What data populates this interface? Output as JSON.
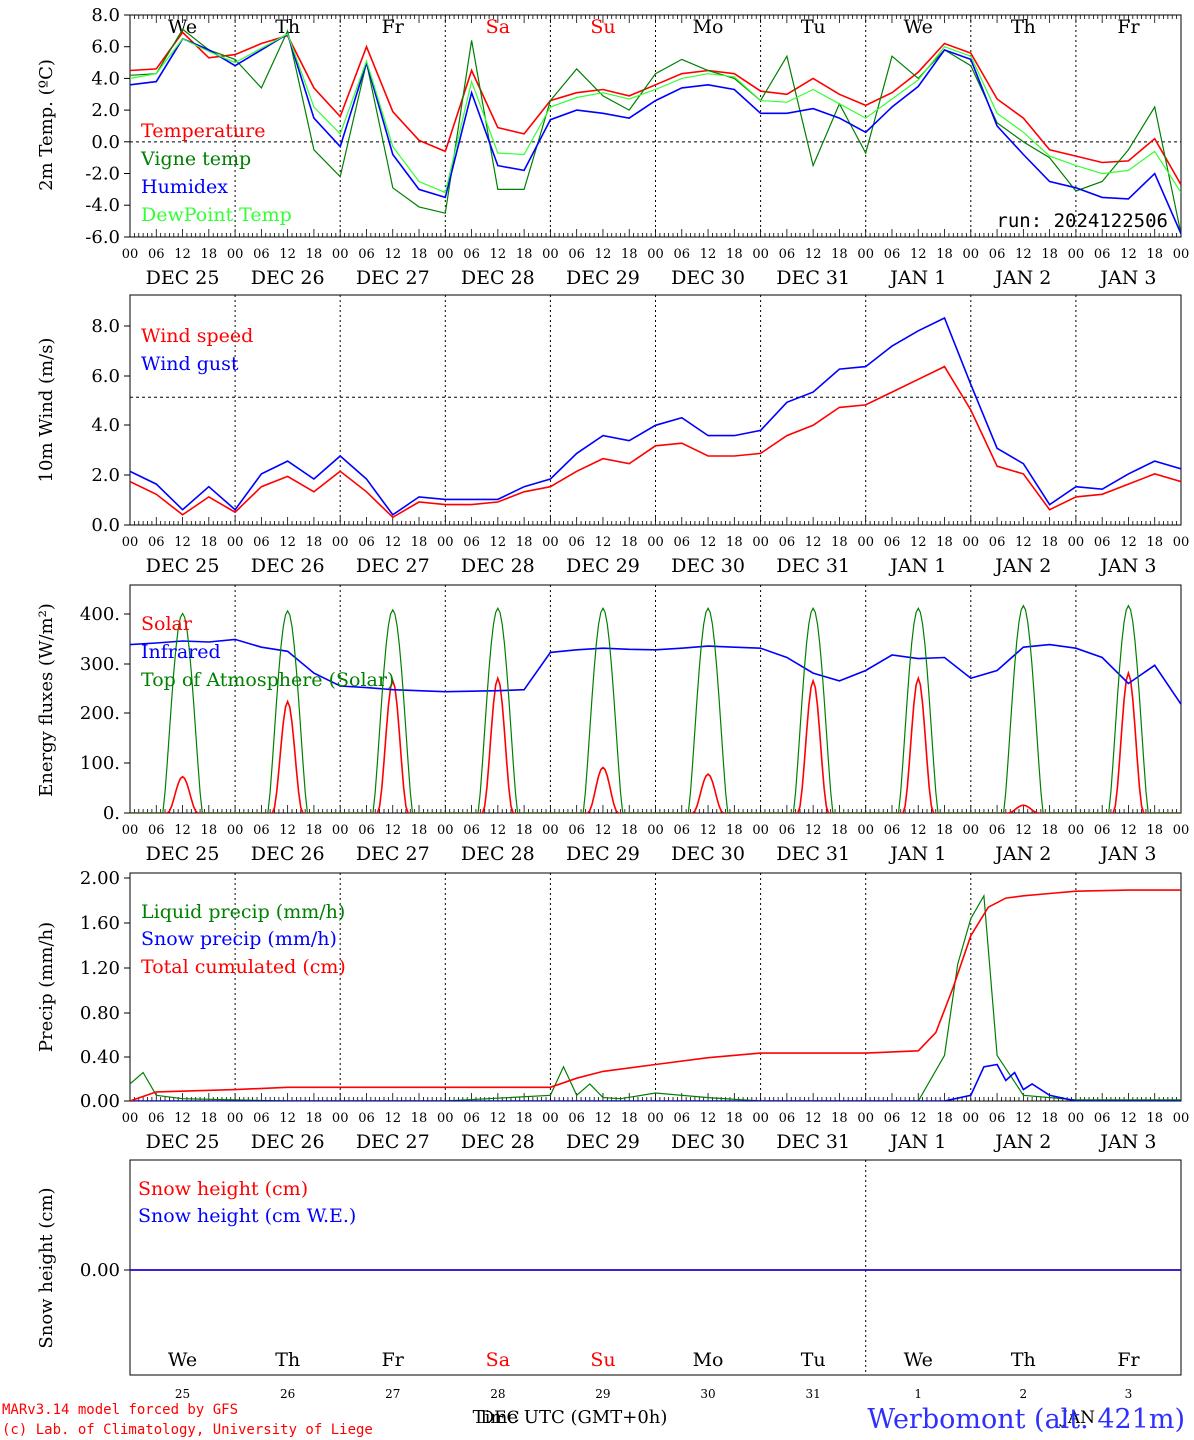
{
  "meta": {
    "run_label": "run: 2024122506",
    "model_line1": "MARv3.14 model forced by GFS",
    "model_line2": "(c) Lab. of Climatology, University of Liege",
    "x_axis_title": "Time UTC (GMT+0h)",
    "overlap_label": "DEC",
    "overlap_label2": "JAN",
    "station": "Werbomont (alt. 421m)"
  },
  "colors": {
    "red": "#ff0000",
    "green": "#008000",
    "blue": "#0000ff",
    "lightgreen": "#33ff33",
    "black": "#000000"
  },
  "weekdays": [
    {
      "label": "We",
      "weekend": false
    },
    {
      "label": "Th",
      "weekend": false
    },
    {
      "label": "Fr",
      "weekend": false
    },
    {
      "label": "Sa",
      "weekend": true
    },
    {
      "label": "Su",
      "weekend": true
    },
    {
      "label": "Mo",
      "weekend": false
    },
    {
      "label": "Tu",
      "weekend": false
    },
    {
      "label": "We",
      "weekend": false
    },
    {
      "label": "Th",
      "weekend": false
    },
    {
      "label": "Fr",
      "weekend": false
    }
  ],
  "date_labels": [
    "DEC 25",
    "DEC 26",
    "DEC 27",
    "DEC 28",
    "DEC 29",
    "DEC 30",
    "DEC 31",
    "JAN  1",
    "JAN  2",
    "JAN  3"
  ],
  "day_numbers": [
    "25",
    "26",
    "27",
    "28",
    "29",
    "30",
    "31",
    "1",
    "2",
    "3"
  ],
  "hour_ticks": [
    "00",
    "06",
    "12",
    "18"
  ],
  "chart_data": [
    {
      "type": "line",
      "ylabel": "2m Temp. (ºC)",
      "ylim": [
        -6,
        8
      ],
      "yticks": [
        "8.0",
        "6.0",
        "4.0",
        "2.0",
        "0.0",
        "-2.0",
        "-4.0",
        "-6.0"
      ],
      "ref_line": 0,
      "x_unit": "hours since DEC 25 00 UTC",
      "series": [
        {
          "name": "Temperature",
          "color": "red",
          "x": [
            0,
            6,
            12,
            18,
            24,
            30,
            36,
            42,
            48,
            54,
            60,
            66,
            72,
            78,
            84,
            90,
            96,
            102,
            108,
            114,
            120,
            126,
            132,
            138,
            144,
            150,
            156,
            162,
            168,
            174,
            180,
            186,
            192,
            198,
            204,
            210,
            216,
            222,
            228,
            234,
            240
          ],
          "y": [
            4.5,
            4.6,
            6.9,
            5.3,
            5.5,
            6.2,
            6.7,
            3.4,
            1.6,
            6.0,
            1.9,
            0.1,
            -0.6,
            4.5,
            0.9,
            0.5,
            2.6,
            3.1,
            3.3,
            2.9,
            3.6,
            4.3,
            4.5,
            4.3,
            3.2,
            3.0,
            4.0,
            3.0,
            2.3,
            3.1,
            4.4,
            6.2,
            5.6,
            2.7,
            1.5,
            -0.5,
            -0.9,
            -1.3,
            -1.2,
            0.2,
            -2.7
          ]
        },
        {
          "name": "Vigne temp",
          "color": "green",
          "x": [
            0,
            6,
            12,
            18,
            24,
            30,
            36,
            42,
            48,
            54,
            60,
            66,
            72,
            78,
            84,
            90,
            96,
            102,
            108,
            114,
            120,
            126,
            132,
            138,
            144,
            150,
            156,
            162,
            168,
            174,
            180,
            186,
            192,
            198,
            204,
            210,
            216,
            222,
            228,
            234,
            240
          ],
          "y": [
            4.2,
            4.3,
            7.1,
            5.8,
            5.2,
            3.4,
            7.0,
            -0.5,
            -2.2,
            5.0,
            -2.9,
            -4.1,
            -4.5,
            6.4,
            -3.0,
            -3.0,
            2.6,
            4.6,
            2.9,
            2.0,
            4.3,
            5.2,
            4.5,
            4.0,
            2.6,
            5.4,
            -1.5,
            2.4,
            -0.7,
            5.4,
            4.0,
            5.8,
            4.8,
            1.2,
            0.0,
            -1.0,
            -3.1,
            -2.5,
            -0.5,
            2.2,
            -5.8
          ]
        },
        {
          "name": "Humidex",
          "color": "blue",
          "x": [
            0,
            6,
            12,
            18,
            24,
            30,
            36,
            42,
            48,
            54,
            60,
            66,
            72,
            78,
            84,
            90,
            96,
            102,
            108,
            114,
            120,
            126,
            132,
            138,
            144,
            150,
            156,
            162,
            168,
            174,
            180,
            186,
            192,
            198,
            204,
            210,
            216,
            222,
            228,
            234,
            240
          ],
          "y": [
            3.6,
            3.8,
            6.5,
            5.8,
            4.8,
            5.8,
            6.8,
            1.5,
            -0.3,
            5.0,
            -0.8,
            -3.0,
            -3.5,
            3.1,
            -1.5,
            -1.8,
            1.4,
            2.0,
            1.8,
            1.5,
            2.6,
            3.4,
            3.6,
            3.3,
            1.8,
            1.8,
            2.1,
            1.5,
            0.6,
            2.2,
            3.5,
            5.8,
            5.2,
            1.0,
            -0.8,
            -2.5,
            -2.9,
            -3.5,
            -3.6,
            -2.0,
            -5.8
          ]
        },
        {
          "name": "DewPoint Temp",
          "color": "lightgreen",
          "x": [
            0,
            6,
            12,
            18,
            24,
            30,
            36,
            42,
            48,
            54,
            60,
            66,
            72,
            78,
            84,
            90,
            96,
            102,
            108,
            114,
            120,
            126,
            132,
            138,
            144,
            150,
            156,
            162,
            168,
            174,
            180,
            186,
            192,
            198,
            204,
            210,
            216,
            222,
            228,
            234,
            240
          ],
          "y": [
            4.0,
            4.3,
            6.5,
            5.7,
            5.0,
            5.9,
            6.8,
            2.2,
            0.5,
            5.1,
            -0.3,
            -2.5,
            -3.2,
            3.8,
            -0.7,
            -0.8,
            2.2,
            2.8,
            3.1,
            2.7,
            3.3,
            4.0,
            4.3,
            4.1,
            2.6,
            2.5,
            3.3,
            2.4,
            1.5,
            2.7,
            3.9,
            6.0,
            5.4,
            1.8,
            0.6,
            -0.9,
            -1.5,
            -2.0,
            -1.8,
            -0.6,
            -3.2
          ]
        }
      ]
    },
    {
      "type": "line",
      "ylabel": "10m Wind (m/s)",
      "ylim": [
        0,
        9
      ],
      "yticks": [
        "8.0",
        "6.0",
        "4.0",
        "2.0",
        "0.0"
      ],
      "ref_line": 5,
      "series": [
        {
          "name": "Wind speed",
          "color": "red",
          "x": [
            0,
            6,
            12,
            18,
            24,
            30,
            36,
            42,
            48,
            54,
            60,
            66,
            72,
            78,
            84,
            90,
            96,
            102,
            108,
            114,
            120,
            126,
            132,
            138,
            144,
            150,
            156,
            162,
            168,
            174,
            180,
            186,
            192,
            198,
            204,
            210,
            216,
            222,
            228,
            234,
            240
          ],
          "y": [
            1.7,
            1.2,
            0.4,
            1.1,
            0.5,
            1.5,
            1.9,
            1.3,
            2.1,
            1.3,
            0.3,
            0.9,
            0.8,
            0.8,
            0.9,
            1.3,
            1.5,
            2.1,
            2.6,
            2.4,
            3.1,
            3.2,
            2.7,
            2.7,
            2.8,
            3.5,
            3.9,
            4.6,
            4.7,
            5.2,
            5.7,
            6.2,
            4.5,
            2.3,
            2.0,
            0.6,
            1.1,
            1.2,
            1.6,
            2.0,
            1.7
          ]
        },
        {
          "name": "Wind gust",
          "color": "blue",
          "x": [
            0,
            6,
            12,
            18,
            24,
            30,
            36,
            42,
            48,
            54,
            60,
            66,
            72,
            78,
            84,
            90,
            96,
            102,
            108,
            114,
            120,
            126,
            132,
            138,
            144,
            150,
            156,
            162,
            168,
            174,
            180,
            186,
            192,
            198,
            204,
            210,
            216,
            222,
            228,
            234,
            240
          ],
          "y": [
            2.1,
            1.6,
            0.6,
            1.5,
            0.6,
            2.0,
            2.5,
            1.8,
            2.7,
            1.8,
            0.4,
            1.1,
            1.0,
            1.0,
            1.0,
            1.5,
            1.8,
            2.8,
            3.5,
            3.3,
            3.9,
            4.2,
            3.5,
            3.5,
            3.7,
            4.8,
            5.2,
            6.1,
            6.2,
            7.0,
            7.6,
            8.1,
            5.5,
            3.0,
            2.4,
            0.8,
            1.5,
            1.4,
            2.0,
            2.5,
            2.2
          ]
        }
      ]
    },
    {
      "type": "line",
      "ylabel": "Energy fluxes (W/m²)",
      "ylim": [
        0,
        440
      ],
      "yticks": [
        "400.",
        "300.",
        "200.",
        "100.",
        "0."
      ],
      "series": [
        {
          "name": "Solar",
          "color": "red",
          "peaks": [
            70,
            215,
            255,
            260,
            88,
            75,
            255,
            260,
            15,
            270
          ]
        },
        {
          "name": "Infrared",
          "color": "blue",
          "x": [
            0,
            6,
            12,
            18,
            24,
            30,
            36,
            42,
            48,
            54,
            60,
            66,
            72,
            78,
            84,
            90,
            96,
            102,
            108,
            114,
            120,
            126,
            132,
            138,
            144,
            150,
            156,
            162,
            168,
            174,
            180,
            186,
            192,
            198,
            204,
            210,
            216,
            222,
            228,
            234,
            240
          ],
          "y": [
            325,
            328,
            332,
            330,
            335,
            320,
            312,
            270,
            245,
            242,
            238,
            236,
            234,
            235,
            236,
            238,
            310,
            315,
            318,
            316,
            315,
            318,
            322,
            320,
            318,
            300,
            270,
            255,
            275,
            305,
            298,
            300,
            260,
            275,
            320,
            325,
            318,
            300,
            250,
            285,
            210
          ]
        },
        {
          "name": "Top of Atmosphere (Solar)",
          "color": "green",
          "peaks": [
            385,
            390,
            392,
            395,
            395,
            395,
            395,
            395,
            400,
            400
          ]
        }
      ]
    },
    {
      "type": "line",
      "ylabel": "Precip (mm/h)",
      "ylim": [
        0,
        2
      ],
      "yticks": [
        "2.00",
        "1.60",
        "1.20",
        "0.80",
        "0.40",
        "0.00"
      ],
      "series": [
        {
          "name": "Liquid precip (mm/h)",
          "color": "green",
          "x": [
            0,
            3,
            6,
            12,
            24,
            36,
            48,
            72,
            96,
            99,
            102,
            105,
            108,
            112,
            120,
            132,
            144,
            168,
            180,
            186,
            189,
            192,
            195,
            198,
            204,
            216,
            240
          ],
          "y": [
            0.15,
            0.25,
            0.05,
            0.02,
            0.01,
            0.0,
            0.0,
            0.0,
            0.05,
            0.3,
            0.05,
            0.15,
            0.03,
            0.02,
            0.07,
            0.03,
            0.0,
            0.0,
            0.0,
            0.4,
            1.2,
            1.6,
            1.8,
            0.4,
            0.05,
            0.01,
            0.01
          ]
        },
        {
          "name": "Snow precip (mm/h)",
          "color": "blue",
          "x": [
            0,
            168,
            186,
            192,
            195,
            198,
            200,
            202,
            204,
            206,
            210,
            216,
            240
          ],
          "y": [
            0,
            0,
            0,
            0.05,
            0.3,
            0.32,
            0.18,
            0.25,
            0.1,
            0.15,
            0.05,
            0.0,
            0.0
          ]
        },
        {
          "name": "Total cumulated (cm)",
          "color": "red",
          "x": [
            0,
            6,
            24,
            36,
            48,
            72,
            96,
            102,
            108,
            120,
            132,
            144,
            156,
            168,
            180,
            184,
            188,
            192,
            196,
            200,
            204,
            210,
            216,
            228,
            240
          ],
          "y": [
            0.0,
            0.08,
            0.1,
            0.12,
            0.12,
            0.12,
            0.12,
            0.2,
            0.26,
            0.32,
            0.38,
            0.42,
            0.42,
            0.42,
            0.44,
            0.6,
            1.0,
            1.45,
            1.7,
            1.78,
            1.8,
            1.82,
            1.84,
            1.85,
            1.85
          ]
        }
      ]
    },
    {
      "type": "line",
      "ylabel": "Snow height (cm)",
      "yticks": [
        "0.00"
      ],
      "series": [
        {
          "name": "Snow height (cm)",
          "color": "red",
          "x": [
            0,
            240
          ],
          "y": [
            0,
            0
          ]
        },
        {
          "name": "Snow height (cm W.E.)",
          "color": "blue",
          "x": [
            0,
            240
          ],
          "y": [
            0,
            0
          ]
        }
      ]
    }
  ]
}
